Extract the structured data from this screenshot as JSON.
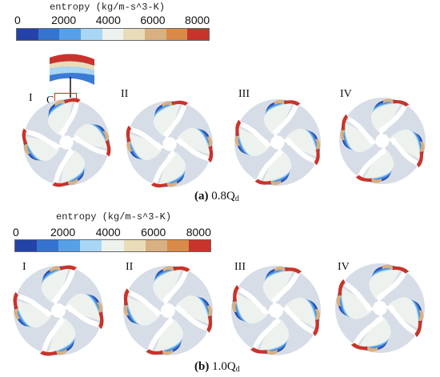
{
  "panel_a": {
    "colorbar": {
      "title": "entropy (kg/m-s^3-K)",
      "ticks": [
        "0",
        "2000",
        "4000",
        "6000",
        "8000"
      ],
      "colors": [
        "#2443a8",
        "#3573d0",
        "#56a0e8",
        "#a9d6f4",
        "#eef2ee",
        "#e9dcb9",
        "#d9b081",
        "#d98a46",
        "#c8342b"
      ]
    },
    "impellers": [
      {
        "label": "I"
      },
      {
        "label": "II"
      },
      {
        "label": "III"
      },
      {
        "label": "IV"
      }
    ],
    "zoom_label": "C",
    "caption": {
      "prefix": "(a)",
      "text": " 0.8Q",
      "sub": "d"
    }
  },
  "panel_b": {
    "colorbar": {
      "title": "entropy (kg/m-s^3-K)",
      "ticks": [
        "0",
        "2000",
        "4000",
        "6000",
        "8000"
      ],
      "colors": [
        "#2443a8",
        "#3573d0",
        "#56a0e8",
        "#a9d6f4",
        "#eef2ee",
        "#e9dcb9",
        "#d9b081",
        "#d98a46",
        "#c8342b"
      ]
    },
    "impellers": [
      {
        "label": "I"
      },
      {
        "label": "II"
      },
      {
        "label": "III"
      },
      {
        "label": "IV"
      }
    ],
    "caption": {
      "prefix": "(b)",
      "text": " 1.0Q",
      "sub": "d"
    }
  }
}
